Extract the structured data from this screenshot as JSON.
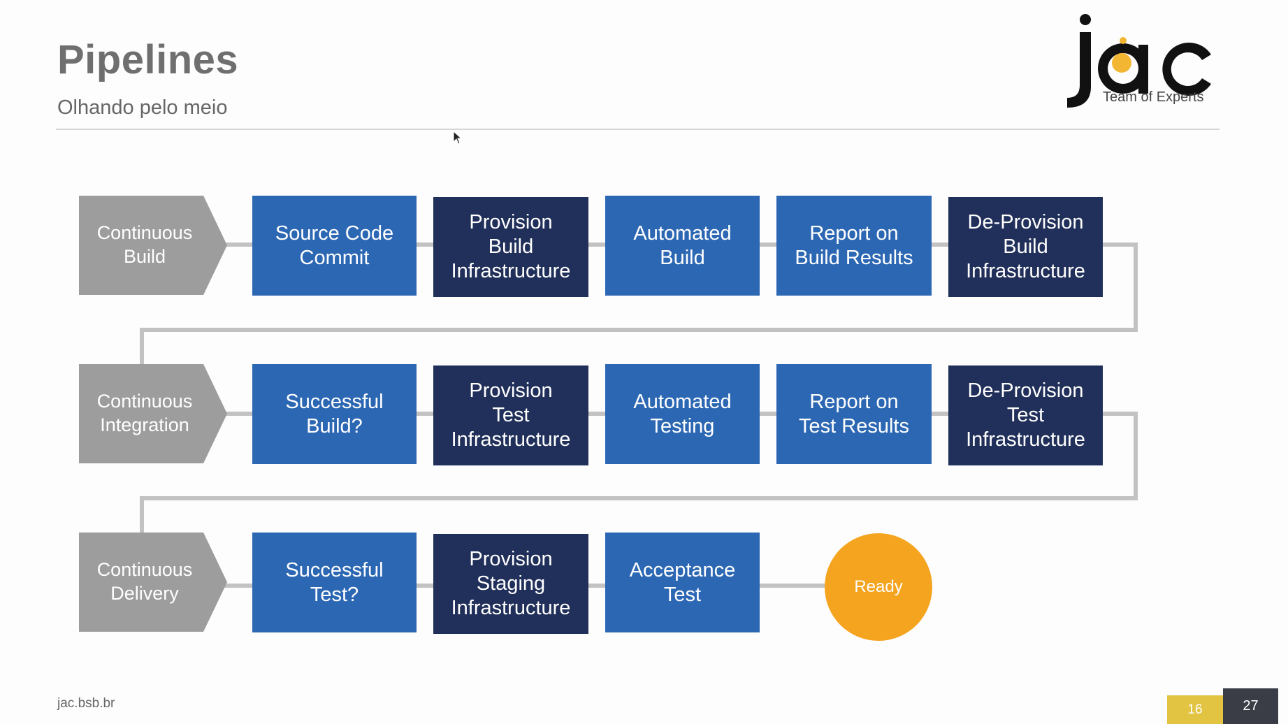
{
  "slide": {
    "title": "Pipelines",
    "subtitle": "Olhando pelo meio",
    "logo_text": "Team of Experts",
    "footer_url": "jac.bsb.br",
    "page_current": "16",
    "page_total": "27"
  },
  "rows": [
    {
      "stage": "Continuous\nBuild",
      "steps": [
        "Source Code\nCommit",
        "Provision\nBuild\nInfrastructure",
        "Automated\nBuild",
        "Report on\nBuild Results",
        "De-Provision\nBuild\nInfrastructure"
      ]
    },
    {
      "stage": "Continuous\nIntegration",
      "steps": [
        "Successful\nBuild?",
        "Provision\nTest\nInfrastructure",
        "Automated\nTesting",
        "Report on\nTest Results",
        "De-Provision\nTest\nInfrastructure"
      ]
    },
    {
      "stage": "Continuous\nDelivery",
      "steps": [
        "Successful\nTest?",
        "Provision\nStaging\nInfrastructure",
        "Acceptance\nTest"
      ]
    }
  ],
  "ready_label": "Ready",
  "colors": {
    "stage_gray": "#9d9d9d",
    "blue": "#2c67b3",
    "navy": "#21305a",
    "ready_orange": "#f4a41f",
    "connector": "#c2c2c2"
  }
}
